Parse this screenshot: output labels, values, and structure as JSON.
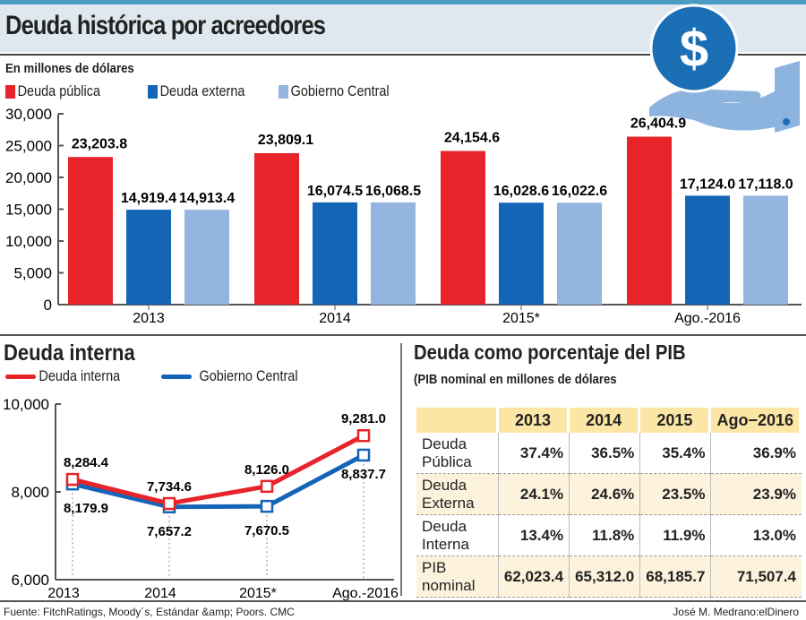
{
  "header": {
    "title": "Deuda histórica por acreedores",
    "subtitle": "En millones de dólares"
  },
  "icon": {
    "name": "hand-dollar-icon",
    "glyph": "$",
    "colors": {
      "coin": "#1a6fb5",
      "hand": "#8db3df"
    }
  },
  "colors": {
    "deuda_publica": "#e8232a",
    "deuda_externa": "#1565b7",
    "gobierno_central": "#93b5df",
    "table_header": "#fce6a6",
    "table_shade": "#fdf3dc"
  },
  "chart_data": [
    {
      "type": "bar",
      "categories": [
        "2013",
        "2014",
        "2015*",
        "Ago.-2016"
      ],
      "series": [
        {
          "name": "Deuda pública",
          "values": [
            23203.8,
            23809.1,
            24154.6,
            26404.9
          ],
          "labels": [
            "23,203.8",
            "23,809.1",
            "24,154.6",
            "26,404.9"
          ]
        },
        {
          "name": "Deuda externa",
          "values": [
            14919.4,
            16074.5,
            16028.6,
            17124.0
          ],
          "labels": [
            "14,919.4",
            "16,074.5",
            "16,028.6",
            "17,124.0"
          ]
        },
        {
          "name": "Gobierno Central",
          "values": [
            14913.4,
            16068.5,
            16022.6,
            17118.0
          ],
          "labels": [
            "14,913.4",
            "16,068.5",
            "16,022.6",
            "17,118.0"
          ]
        }
      ],
      "ylim": [
        0,
        30000
      ],
      "yticks": [
        "0",
        "5,000",
        "10,000",
        "15,000",
        "20,000",
        "25,000",
        "30,000"
      ],
      "legend": "top-left"
    },
    {
      "type": "line",
      "title": "Deuda interna",
      "categories": [
        "2013",
        "2014",
        "2015*",
        "Ago.-2016"
      ],
      "series": [
        {
          "name": "Deuda interna",
          "values": [
            8284.4,
            7734.6,
            8126.0,
            9281.0
          ],
          "labels": [
            "8,284.4",
            "7,734.6",
            "8,126.0",
            "9,281.0"
          ]
        },
        {
          "name": "Gobierno Central",
          "values": [
            8179.9,
            7657.2,
            7670.5,
            8837.7
          ],
          "labels": [
            "8,179.9",
            "7,657.2",
            "7,670.5",
            "8,837.7"
          ]
        }
      ],
      "ylim": [
        6000,
        10000
      ],
      "yticks": [
        "6,000",
        "8,000",
        "10,000"
      ],
      "legend": "top-left"
    },
    {
      "type": "table",
      "title": "Deuda como porcentaje del PIB",
      "subtitle": "(PIB nominal en millones de dólares",
      "columns": [
        "",
        "2013",
        "2014",
        "2015",
        "Ago−2016"
      ],
      "rows": [
        {
          "label": "Deuda Pública",
          "cells": [
            "37.4%",
            "36.5%",
            "35.4%",
            "36.9%"
          ]
        },
        {
          "label": "Deuda Externa",
          "cells": [
            "24.1%",
            "24.6%",
            "23.5%",
            "23.9%"
          ]
        },
        {
          "label": "Deuda Interna",
          "cells": [
            "13.4%",
            "11.8%",
            "11.9%",
            "13.0%"
          ]
        },
        {
          "label": "PIB nominal",
          "cells": [
            "62,023.4",
            "65,312.0",
            "68,185.7",
            "71,507.4"
          ]
        }
      ]
    }
  ],
  "footer": {
    "source": "Fuente: FitchRatings, Moody´s, Estándar &amp; Poors. CMC",
    "credit": "José M. Medrano:elDinero"
  }
}
